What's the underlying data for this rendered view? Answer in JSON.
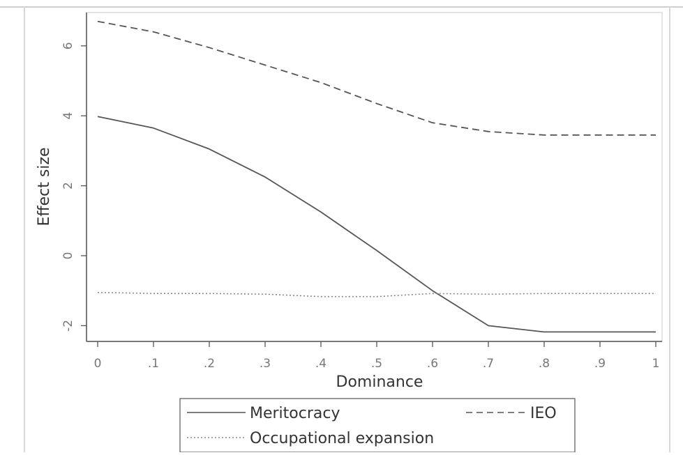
{
  "chart_data": {
    "type": "line",
    "xlabel": "Dominance",
    "ylabel": "Effect size",
    "xlim": [
      0,
      1
    ],
    "ylim": [
      -2.4,
      6.9
    ],
    "x_ticks": [
      "0",
      ".1",
      ".2",
      ".3",
      ".4",
      ".5",
      ".6",
      ".7",
      ".8",
      ".9",
      "1"
    ],
    "y_ticks": [
      "-2",
      "0",
      "2",
      "4",
      "6"
    ],
    "x": [
      0,
      0.1,
      0.2,
      0.3,
      0.4,
      0.5,
      0.6,
      0.7,
      0.8,
      0.9,
      1.0
    ],
    "series": [
      {
        "name": "Meritocracy",
        "style": "solid",
        "values": [
          3.98,
          3.65,
          3.05,
          2.25,
          1.25,
          0.15,
          -1.0,
          -2.0,
          -2.18,
          -2.18,
          -2.18
        ]
      },
      {
        "name": "IEO",
        "style": "dashed",
        "values": [
          6.7,
          6.4,
          5.95,
          5.45,
          4.95,
          4.35,
          3.8,
          3.55,
          3.45,
          3.45,
          3.45
        ]
      },
      {
        "name": "Occupational expansion",
        "style": "dotted",
        "values": [
          -1.05,
          -1.08,
          -1.08,
          -1.1,
          -1.17,
          -1.17,
          -1.08,
          -1.1,
          -1.08,
          -1.08,
          -1.08
        ]
      }
    ],
    "grid": false,
    "legend_position": "bottom",
    "colors": {
      "line": "#555555",
      "axis": "#555555",
      "tick_label": "#777777",
      "frame": "#d0d0d0"
    }
  }
}
